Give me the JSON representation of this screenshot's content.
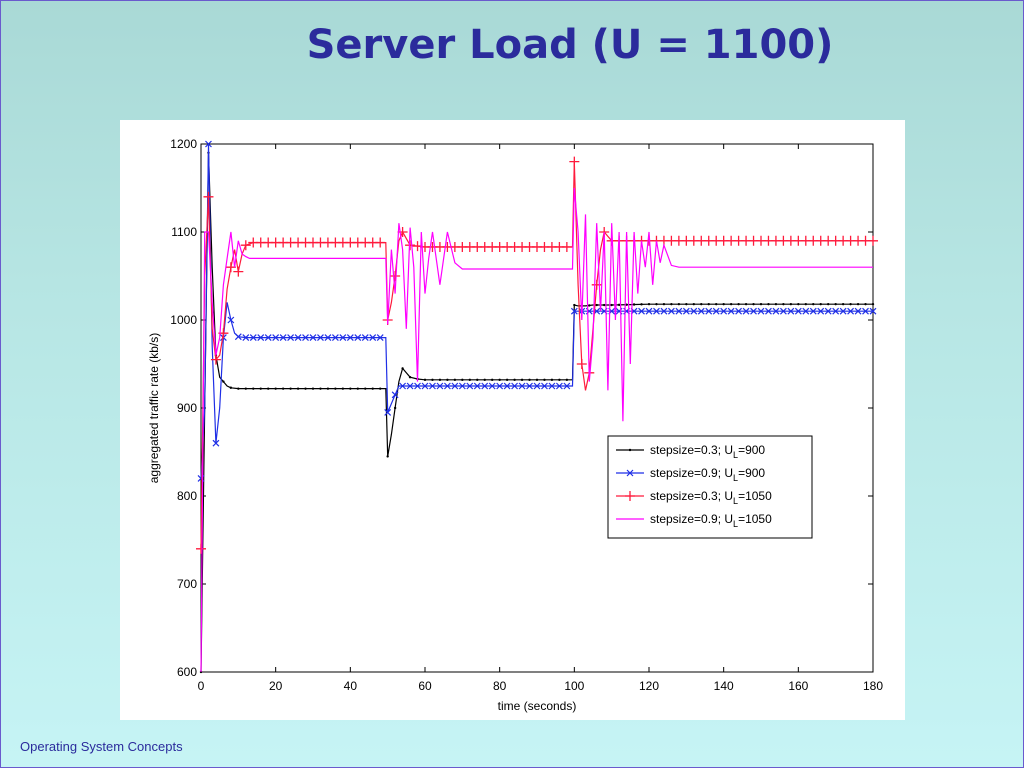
{
  "slide": {
    "title": "Server Load (U = 1100)",
    "footer": "Operating System Concepts"
  },
  "chart_data": {
    "type": "line",
    "xlabel": "time (seconds)",
    "ylabel": "aggregated traffic rate (kb/s)",
    "xlim": [
      0,
      180
    ],
    "ylim": [
      600,
      1200
    ],
    "xticks": [
      0,
      20,
      40,
      60,
      80,
      100,
      120,
      140,
      160,
      180
    ],
    "yticks": [
      600,
      700,
      800,
      900,
      1000,
      1100,
      1200
    ],
    "grid": false,
    "legend_position": "lower-right",
    "series": [
      {
        "name": "stepsize=0.3; U_L=900",
        "legend_main": "stepsize=0.3; U",
        "legend_sub": "L",
        "legend_tail": "=900",
        "color": "#000000",
        "marker": "dot",
        "x": [
          0,
          1,
          2,
          3,
          4,
          5,
          6,
          7,
          8,
          10,
          12,
          14,
          20,
          30,
          40,
          49.5,
          50,
          51,
          52,
          53,
          54,
          55,
          56,
          58,
          60,
          70,
          80,
          90,
          99.5,
          100,
          101,
          103,
          105,
          110,
          120,
          140,
          160,
          180
        ],
        "y": [
          600,
          900,
          1190,
          1060,
          960,
          935,
          930,
          925,
          923,
          922,
          922,
          922,
          922,
          922,
          922,
          922,
          845,
          870,
          900,
          930,
          945,
          940,
          935,
          933,
          932,
          932,
          932,
          932,
          932,
          1017,
          1016,
          1016,
          1017,
          1017,
          1018,
          1018,
          1018,
          1018
        ]
      },
      {
        "name": "stepsize=0.9; U_L=900",
        "legend_main": "stepsize=0.9; U",
        "legend_sub": "L",
        "legend_tail": "=900",
        "color": "#1f2fe6",
        "marker": "x",
        "x": [
          0,
          1,
          2,
          3,
          4,
          5,
          6,
          7,
          8,
          9,
          10,
          12,
          15,
          20,
          30,
          40,
          49.5,
          50,
          51,
          52,
          53,
          55,
          60,
          70,
          80,
          90,
          99.5,
          100,
          101,
          103,
          105,
          110,
          120,
          140,
          160,
          180
        ],
        "y": [
          820,
          900,
          1200,
          970,
          860,
          900,
          980,
          1020,
          1000,
          985,
          981,
          980,
          980,
          980,
          980,
          980,
          980,
          895,
          905,
          915,
          925,
          925,
          925,
          925,
          925,
          925,
          925,
          1010,
          1010,
          1010,
          1010,
          1010,
          1010,
          1010,
          1010,
          1010
        ]
      },
      {
        "name": "stepsize=0.3; U_L=1050",
        "legend_main": "stepsize=0.3; U",
        "legend_sub": "L",
        "legend_tail": "=1050",
        "color": "#ff1a3c",
        "marker": "plus",
        "x": [
          0,
          1,
          2,
          3,
          4,
          5,
          6,
          7,
          8,
          9,
          10,
          11,
          12,
          14,
          16,
          20,
          30,
          40,
          49.5,
          50,
          51,
          52,
          53,
          54,
          56,
          60,
          70,
          80,
          90,
          99.5,
          100,
          101,
          102,
          103,
          104,
          105,
          106,
          107,
          108,
          109,
          110,
          112,
          115,
          120,
          140,
          160,
          180
        ],
        "y": [
          740,
          1050,
          1140,
          990,
          955,
          960,
          985,
          1035,
          1060,
          1080,
          1055,
          1075,
          1085,
          1088,
          1088,
          1088,
          1088,
          1088,
          1088,
          1000,
          1020,
          1050,
          1090,
          1100,
          1085,
          1083,
          1083,
          1083,
          1083,
          1083,
          1180,
          1040,
          950,
          920,
          940,
          990,
          1040,
          1080,
          1100,
          1095,
          1090,
          1090,
          1090,
          1090,
          1090,
          1090,
          1090
        ]
      },
      {
        "name": "stepsize=0.9; U_L=1050",
        "legend_main": "stepsize=0.9; U",
        "legend_sub": "L",
        "legend_tail": "=1050",
        "color": "#ff00ff",
        "marker": "none",
        "x": [
          0,
          1,
          2,
          3,
          4,
          5,
          6,
          7,
          8,
          9,
          10,
          11,
          12,
          13,
          14,
          16,
          20,
          30,
          40,
          49.5,
          50,
          51,
          52,
          53,
          54,
          55,
          56,
          57,
          58,
          59,
          60,
          61,
          62,
          64,
          66,
          68,
          70,
          80,
          90,
          99.5,
          100,
          101,
          102,
          103,
          104,
          105,
          106,
          107,
          108,
          109,
          110,
          111,
          112,
          113,
          114,
          115,
          116,
          117,
          118,
          119,
          120,
          121,
          122,
          123,
          124,
          126,
          128,
          130,
          140,
          160,
          180
        ],
        "y": [
          600,
          1100,
          1100,
          1020,
          960,
          980,
          1040,
          1070,
          1100,
          1060,
          1090,
          1075,
          1072,
          1070,
          1070,
          1070,
          1070,
          1070,
          1070,
          1070,
          995,
          1080,
          1030,
          1110,
          1080,
          990,
          1105,
          1060,
          930,
          1100,
          1030,
          1070,
          1100,
          1040,
          1100,
          1065,
          1058,
          1058,
          1058,
          1058,
          1150,
          1100,
          1000,
          1120,
          930,
          980,
          1110,
          1010,
          1100,
          920,
          1110,
          1000,
          1100,
          885,
          1100,
          950,
          1100,
          1030,
          1090,
          1060,
          1100,
          1040,
          1090,
          1065,
          1085,
          1062,
          1060,
          1060,
          1060,
          1060,
          1060
        ]
      }
    ]
  }
}
